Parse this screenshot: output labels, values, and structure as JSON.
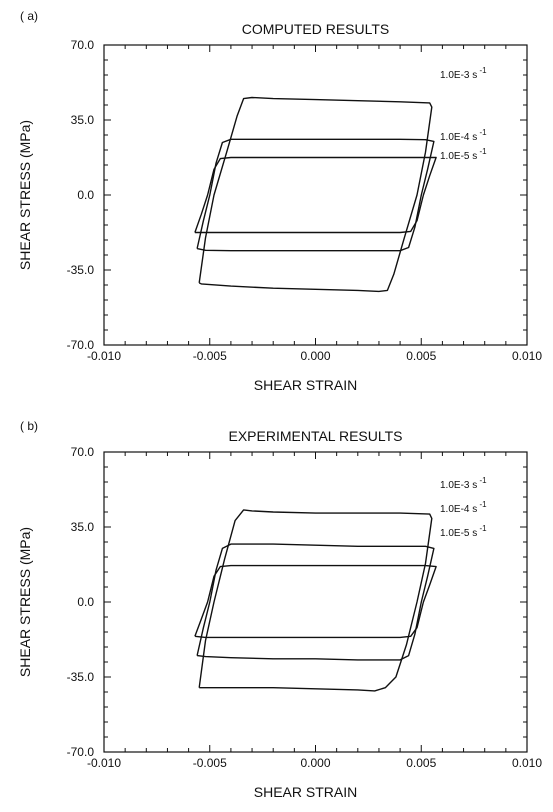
{
  "chart_data": [
    {
      "type": "line",
      "panel_label": "( a)",
      "title": "COMPUTED RESULTS",
      "xlabel": "SHEAR STRAIN",
      "ylabel": "SHEAR STRESS (MPa)",
      "xlim": [
        -0.01,
        0.01
      ],
      "ylim": [
        -70.0,
        70.0
      ],
      "x_ticks": [
        "-0.010",
        "-0.005",
        "0.000",
        "0.005",
        "0.010"
      ],
      "y_ticks": [
        "70.0",
        "35.0",
        "0.0",
        "-35.0",
        "-70.0"
      ],
      "x_tick_values": [
        -0.01,
        -0.005,
        0.0,
        0.005,
        0.01
      ],
      "y_tick_values": [
        70.0,
        35.0,
        0.0,
        -35.0,
        -70.0
      ],
      "grid": false,
      "series": [
        {
          "name": "1.0E-3 s-1",
          "label_main": "1.0E-3 s",
          "label_sup": "-1",
          "x": [
            -0.0055,
            -0.0052,
            -0.0048,
            -0.0042,
            -0.0037,
            -0.0034,
            -0.003,
            -0.002,
            0.0,
            0.002,
            0.004,
            0.0054,
            0.0055,
            0.0052,
            0.0048,
            0.0042,
            0.0037,
            0.0034,
            0.003,
            0.002,
            0.0,
            -0.002,
            -0.004,
            -0.0054,
            -0.0055
          ],
          "y": [
            -41.0,
            -20.0,
            0.0,
            20.0,
            37.0,
            45.0,
            45.5,
            45.0,
            44.5,
            44.0,
            43.5,
            43.0,
            41.0,
            20.0,
            0.0,
            -20.0,
            -37.0,
            -44.5,
            -45.0,
            -44.5,
            -44.0,
            -43.5,
            -42.5,
            -41.5,
            -41.0
          ]
        },
        {
          "name": "1.0E-4 s-1",
          "label_main": "1.0E-4 s",
          "label_sup": "-1",
          "x": [
            -0.0056,
            -0.0053,
            -0.005,
            -0.0047,
            -0.0044,
            -0.004,
            -0.002,
            0.0,
            0.002,
            0.004,
            0.0052,
            0.0056,
            0.0053,
            0.005,
            0.0047,
            0.0044,
            0.004,
            0.002,
            0.0,
            -0.002,
            -0.004,
            -0.0052,
            -0.0056
          ],
          "y": [
            -25.0,
            -12.0,
            0.0,
            15.0,
            24.5,
            26.0,
            26.0,
            26.0,
            26.0,
            26.0,
            25.8,
            25.0,
            12.0,
            0.0,
            -15.0,
            -24.5,
            -26.0,
            -26.0,
            -26.0,
            -26.0,
            -26.0,
            -25.8,
            -25.0
          ]
        },
        {
          "name": "1.0E-5 s-1",
          "label_main": "1.0E-5 s",
          "label_sup": "-1",
          "x": [
            -0.0057,
            -0.0054,
            -0.0051,
            -0.0048,
            -0.0045,
            -0.004,
            -0.002,
            0.0,
            0.002,
            0.004,
            0.0052,
            0.0057,
            0.0054,
            0.0051,
            0.0048,
            0.0045,
            0.004,
            0.002,
            0.0,
            -0.002,
            -0.004,
            -0.0052,
            -0.0057
          ],
          "y": [
            -17.5,
            -9.0,
            0.0,
            12.0,
            17.0,
            17.5,
            17.5,
            17.5,
            17.5,
            17.5,
            17.5,
            17.5,
            9.0,
            0.0,
            -12.0,
            -17.0,
            -17.5,
            -17.5,
            -17.5,
            -17.5,
            -17.5,
            -17.5,
            -17.5
          ]
        }
      ]
    },
    {
      "type": "line",
      "panel_label": "( b)",
      "title": "EXPERIMENTAL RESULTS",
      "xlabel": "SHEAR STRAIN",
      "ylabel": "SHEAR STRESS (MPa)",
      "xlim": [
        -0.01,
        0.01
      ],
      "ylim": [
        -70.0,
        70.0
      ],
      "x_ticks": [
        "-0.010",
        "-0.005",
        "0.000",
        "0.005",
        "0.010"
      ],
      "y_ticks": [
        "70.0",
        "35.0",
        "0.0",
        "-35.0",
        "-70.0"
      ],
      "x_tick_values": [
        -0.01,
        -0.005,
        0.0,
        0.005,
        0.01
      ],
      "y_tick_values": [
        70.0,
        35.0,
        0.0,
        -35.0,
        -70.0
      ],
      "grid": false,
      "series": [
        {
          "name": "1.0E-3 s-1",
          "label_main": "1.0E-3 s",
          "label_sup": "-1",
          "x": [
            -0.0055,
            -0.0052,
            -0.0048,
            -0.0043,
            -0.0038,
            -0.0034,
            -0.003,
            -0.002,
            0.0,
            0.002,
            0.004,
            0.0054,
            0.0055,
            0.0052,
            0.0048,
            0.0043,
            0.0038,
            0.0033,
            0.0028,
            0.002,
            0.0,
            -0.002,
            -0.004,
            -0.0054,
            -0.0055
          ],
          "y": [
            -40.0,
            -18.0,
            0.0,
            20.0,
            38.0,
            43.0,
            42.5,
            42.0,
            41.5,
            41.5,
            41.5,
            41.0,
            39.0,
            18.0,
            0.0,
            -20.0,
            -35.0,
            -40.0,
            -41.5,
            -41.0,
            -40.5,
            -40.0,
            -40.0,
            -40.0,
            -40.0
          ]
        },
        {
          "name": "1.0E-4 s-1",
          "label_main": "1.0E-4 s",
          "label_sup": "-1",
          "x": [
            -0.0056,
            -0.0053,
            -0.005,
            -0.0047,
            -0.0044,
            -0.004,
            -0.002,
            0.0,
            0.002,
            0.004,
            0.0052,
            0.0056,
            0.0053,
            0.005,
            0.0047,
            0.0044,
            0.004,
            0.002,
            0.0,
            -0.002,
            -0.004,
            -0.0052,
            -0.0056
          ],
          "y": [
            -25.0,
            -12.0,
            0.0,
            15.0,
            25.0,
            27.0,
            27.0,
            26.5,
            26.0,
            26.0,
            26.0,
            25.0,
            12.0,
            0.0,
            -15.0,
            -25.0,
            -27.0,
            -27.0,
            -26.5,
            -26.5,
            -26.0,
            -25.5,
            -25.0
          ]
        },
        {
          "name": "1.0E-5 s-1",
          "label_main": "1.0E-5 s",
          "label_sup": "-1",
          "x": [
            -0.0057,
            -0.0054,
            -0.0051,
            -0.0048,
            -0.0045,
            -0.004,
            -0.002,
            0.0,
            0.002,
            0.004,
            0.0052,
            0.0057,
            0.0054,
            0.0051,
            0.0048,
            0.0045,
            0.004,
            0.002,
            0.0,
            -0.002,
            -0.004,
            -0.0052,
            -0.0057
          ],
          "y": [
            -16.0,
            -8.0,
            0.0,
            12.0,
            16.5,
            17.0,
            17.0,
            17.0,
            17.0,
            17.0,
            17.0,
            16.5,
            8.0,
            0.0,
            -12.0,
            -16.0,
            -16.5,
            -16.5,
            -16.5,
            -16.5,
            -16.5,
            -16.5,
            -16.0
          ]
        }
      ]
    }
  ]
}
